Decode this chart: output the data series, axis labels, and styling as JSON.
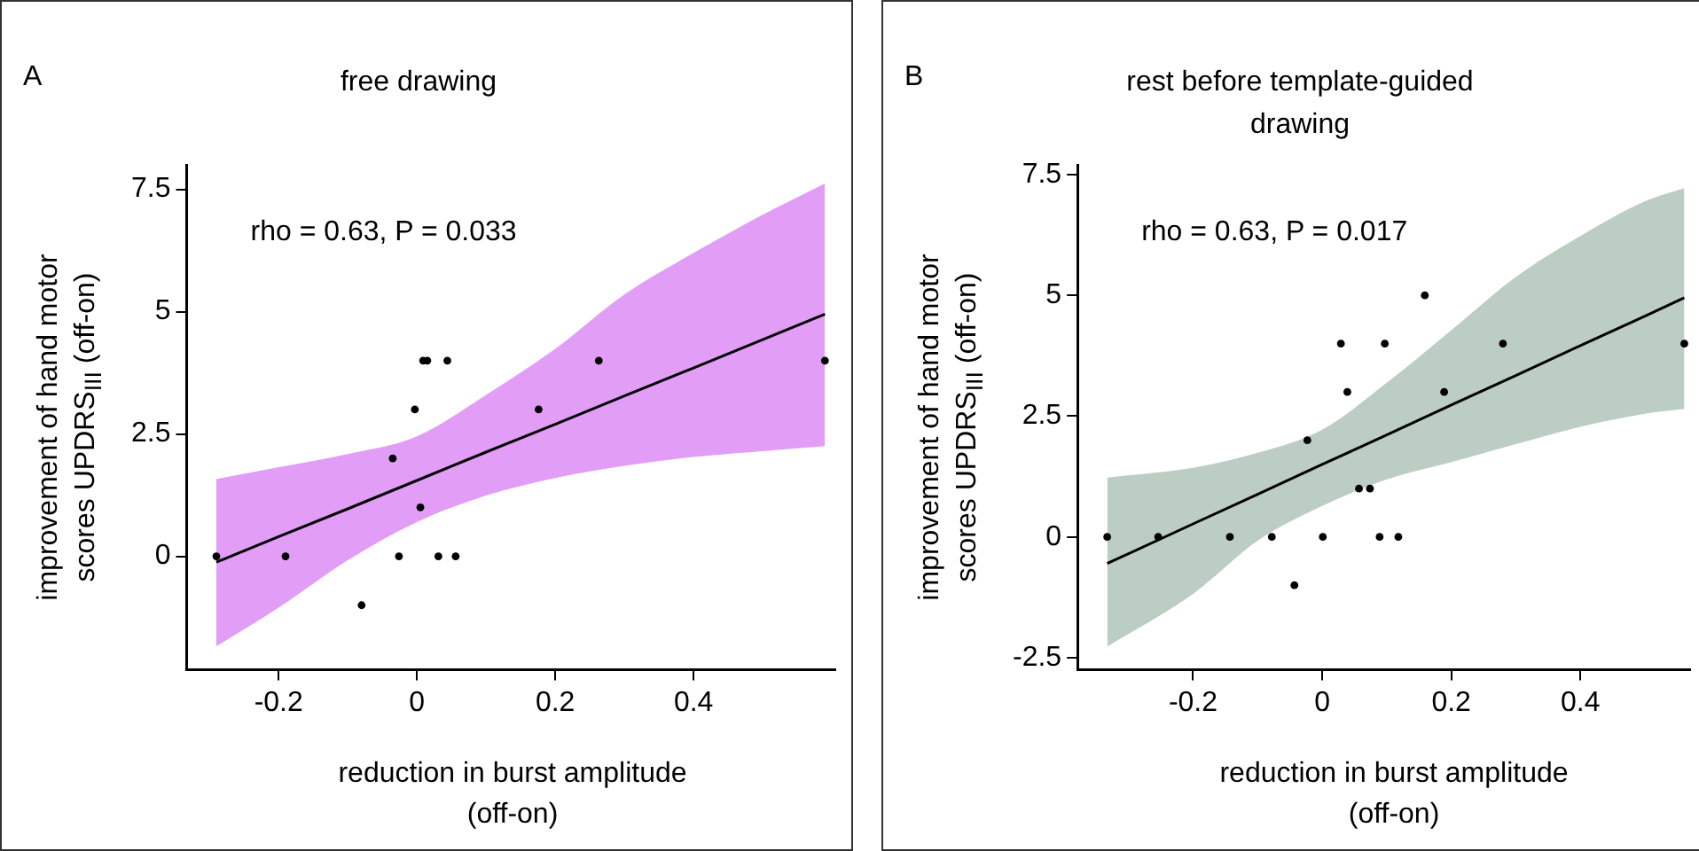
{
  "chart_data": [
    {
      "type": "scatter",
      "title": "free drawing",
      "xlabel": "reduction in burst amplitude (off-on)",
      "ylabel": "improvement of hand motor scores UPDRS$_{III}$ (off-on)",
      "annotations": [
        "A",
        "rho = 0.63, P = 0.033"
      ],
      "xlim": [
        -0.333,
        0.605
      ],
      "ylim": [
        -2.32,
        8.0
      ],
      "xticks": [
        -0.2,
        0,
        0.2,
        0.4
      ],
      "yticks": [
        0,
        2.5,
        5,
        7.5
      ],
      "grid": false,
      "legend": false,
      "marker": "circle",
      "series": [
        {
          "type": "line",
          "color": "#000000",
          "marker": "none",
          "x": [
            -0.29,
            -0.2,
            -0.1,
            0,
            0.1,
            0.2,
            0.3,
            0.4,
            0.5,
            0.59
          ],
          "values": [
            -0.12,
            0.4,
            0.97,
            1.55,
            2.13,
            2.7,
            3.28,
            3.85,
            4.43,
            4.95
          ],
          "lower": [
            -1.84,
            -1.05,
            -0.08,
            0.7,
            1.24,
            1.6,
            1.85,
            2.03,
            2.15,
            2.25
          ],
          "upper": [
            1.58,
            1.82,
            2.09,
            2.45,
            3.3,
            4.24,
            5.35,
            6.2,
            6.98,
            7.62
          ]
        },
        {
          "type": "scatter",
          "color": "#000000",
          "x": [
            -0.29,
            -0.19,
            -0.08,
            -0.035,
            -0.026,
            -0.003,
            0.005,
            0.009,
            0.015,
            0.031,
            0.044,
            0.056,
            0.176,
            0.263,
            0.59
          ],
          "values": [
            0,
            0,
            -1,
            2,
            0,
            3,
            1,
            4,
            4,
            0,
            4,
            0,
            3,
            4,
            4
          ]
        }
      ]
    },
    {
      "type": "scatter",
      "title": "rest before template-guided drawing",
      "xlabel": "reduction in burst amplitude (off-on)",
      "ylabel": "improvement of hand motor scores UPDRS$_{III}$ (off-on)",
      "annotations": [
        "B",
        "rho = 0.63, P = 0.017"
      ],
      "xlim": [
        -0.379,
        0.57
      ],
      "ylim": [
        -2.75,
        7.7
      ],
      "xticks": [
        -0.2,
        0,
        0.2,
        0.4
      ],
      "yticks": [
        -2.5,
        0,
        2.5,
        5,
        7.5
      ],
      "grid": false,
      "legend": false,
      "marker": "circle",
      "series": [
        {
          "type": "line",
          "color": "#000000",
          "marker": "none",
          "x": [
            -0.333,
            -0.2,
            -0.1,
            0,
            0.1,
            0.2,
            0.3,
            0.4,
            0.5,
            0.561
          ],
          "values": [
            -0.55,
            0.27,
            0.88,
            1.5,
            2.11,
            2.73,
            3.34,
            3.96,
            4.57,
            4.95
          ],
          "lower": [
            -2.27,
            -1.18,
            -0.08,
            0.64,
            1.19,
            1.55,
            1.92,
            2.28,
            2.55,
            2.65
          ],
          "upper": [
            1.23,
            1.43,
            1.74,
            2.22,
            3.19,
            4.28,
            5.38,
            6.23,
            6.95,
            7.22
          ]
        },
        {
          "type": "scatter",
          "color": "#000000",
          "x": [
            -0.333,
            -0.254,
            -0.143,
            -0.078,
            -0.043,
            -0.023,
            0.001,
            0.029,
            0.039,
            0.057,
            0.074,
            0.089,
            0.097,
            0.118,
            0.159,
            0.189,
            0.28,
            0.561
          ],
          "values": [
            0,
            0,
            0,
            0,
            -1,
            2,
            0,
            4,
            3,
            1,
            1,
            0,
            4,
            0,
            5,
            3,
            4,
            4
          ]
        }
      ]
    }
  ]
}
